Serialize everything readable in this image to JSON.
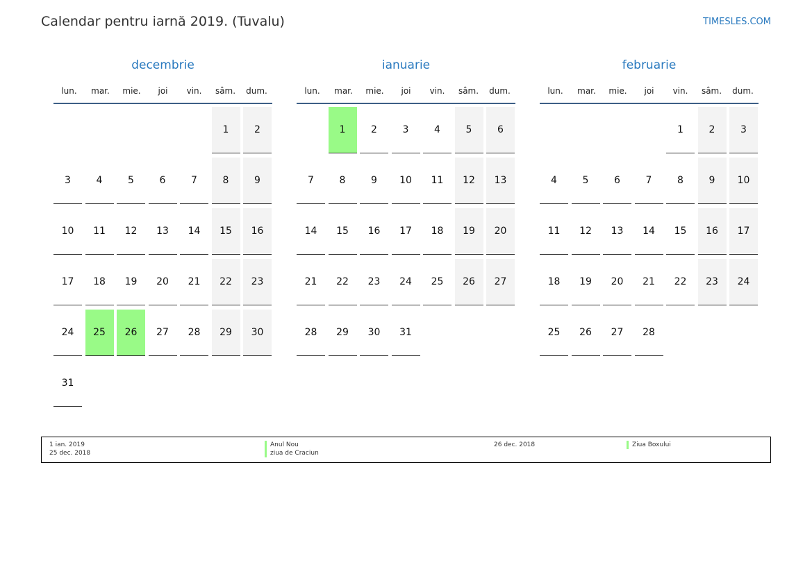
{
  "header": {
    "title": "Calendar pentru iarnă 2019. (Tuvalu)",
    "site": "TIMESLES.COM"
  },
  "weekdays": [
    "lun.",
    "mar.",
    "mie.",
    "joi",
    "vin.",
    "sâm.",
    "dum."
  ],
  "colors": {
    "accent": "#2a7abf",
    "holiday": "#99fa87",
    "weekend": "#f3f3f3"
  },
  "months": [
    {
      "name": "decembrie",
      "start_weekday": 5,
      "days": 31,
      "holidays": [
        25,
        26
      ]
    },
    {
      "name": "ianuarie",
      "start_weekday": 1,
      "days": 31,
      "holidays": [
        1
      ]
    },
    {
      "name": "februarie",
      "start_weekday": 4,
      "days": 28,
      "holidays": []
    }
  ],
  "legend": [
    {
      "dates": "1 ian. 2019",
      "names": "Anul Nou"
    },
    {
      "dates": "25 dec. 2018",
      "names": "ziua de Craciun"
    },
    {
      "dates": "26 dec. 2018",
      "names": "Ziua Boxului"
    }
  ]
}
